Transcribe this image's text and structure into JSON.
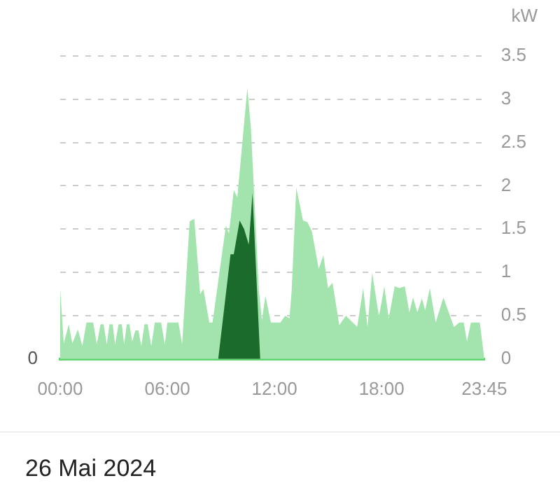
{
  "chart_data": {
    "type": "area",
    "title": "26 Mai 2024",
    "ylabel": "kW",
    "x": [
      0,
      0.2,
      0.48,
      0.68,
      0.99,
      1.24,
      1.47,
      1.85,
      2.05,
      2.26,
      2.43,
      2.61,
      2.76,
      2.94,
      3.07,
      3.27,
      3.45,
      3.58,
      3.73,
      3.88,
      4.03,
      4.21,
      4.38,
      4.54,
      4.72,
      4.9,
      5.1,
      5.3,
      5.65,
      5.86,
      6.0,
      6.62,
      6.83,
      7.25,
      7.51,
      7.84,
      8.02,
      8.35,
      8.53,
      9.28,
      9.45,
      9.72,
      9.92,
      10.48,
      10.68,
      11.13,
      11.3,
      11.49,
      11.8,
      12.33,
      12.6,
      12.84,
      12.96,
      13.22,
      13.6,
      13.85,
      14.1,
      14.48,
      14.74,
      15.0,
      15.25,
      15.63,
      16.0,
      16.38,
      16.63,
      16.97,
      17.21,
      17.47,
      17.85,
      18.15,
      18.4,
      18.73,
      19.0,
      19.3,
      19.55,
      19.76,
      20.0,
      20.26,
      20.44,
      20.7,
      21.03,
      21.46,
      22.05,
      22.35,
      22.6,
      22.78,
      23.0,
      23.5,
      23.75
    ],
    "series": [
      {
        "color": "#a3e4ae",
        "values": [
          0.81,
          0.18,
          0.4,
          0.18,
          0.34,
          0.15,
          0.42,
          0.42,
          0.17,
          0.4,
          0.4,
          0.17,
          0.4,
          0.4,
          0.17,
          0.4,
          0.4,
          0.17,
          0.4,
          0.4,
          0.2,
          0.33,
          0.33,
          0.15,
          0.4,
          0.4,
          0.15,
          0.42,
          0.42,
          0.17,
          0.42,
          0.42,
          0.17,
          1.59,
          1.62,
          0.75,
          0.81,
          0.42,
          0.42,
          1.54,
          1.45,
          1.95,
          1.87,
          3.13,
          2.67,
          0.78,
          0.45,
          0.73,
          0.42,
          0.42,
          0.5,
          0.47,
          0.78,
          1.98,
          1.6,
          1.58,
          1.47,
          1.04,
          1.2,
          0.82,
          0.88,
          0.39,
          0.5,
          0.42,
          0.37,
          0.82,
          0.37,
          1.0,
          0.49,
          0.84,
          0.47,
          0.84,
          0.82,
          0.84,
          0.54,
          0.71,
          0.54,
          0.7,
          0.56,
          0.82,
          0.42,
          0.71,
          0.37,
          0.42,
          0.42,
          0.2,
          0.42,
          0.42,
          0
        ]
      },
      {
        "color": "#1a6b2c",
        "x": [
          0,
          8.85,
          9.54,
          9.72,
          10.05,
          10.3,
          10.56,
          10.77,
          11.2,
          23.75
        ],
        "values": [
          0,
          0,
          1.21,
          1.21,
          1.6,
          1.5,
          1.32,
          1.92,
          0,
          0
        ]
      }
    ],
    "xlim": [
      0,
      23.75
    ],
    "xticks": [
      {
        "value": 0,
        "label": "00:00"
      },
      {
        "value": 6,
        "label": "06:00"
      },
      {
        "value": 12,
        "label": "12:00"
      },
      {
        "value": 18,
        "label": "18:00"
      },
      {
        "value": 23.75,
        "label": "23:45"
      }
    ],
    "ylim": [
      0,
      3.5
    ],
    "yticks": [
      0,
      0.5,
      1,
      1.5,
      2,
      2.5,
      3,
      3.5
    ],
    "annotations": [
      "0"
    ],
    "grid": "y",
    "legend": false
  }
}
